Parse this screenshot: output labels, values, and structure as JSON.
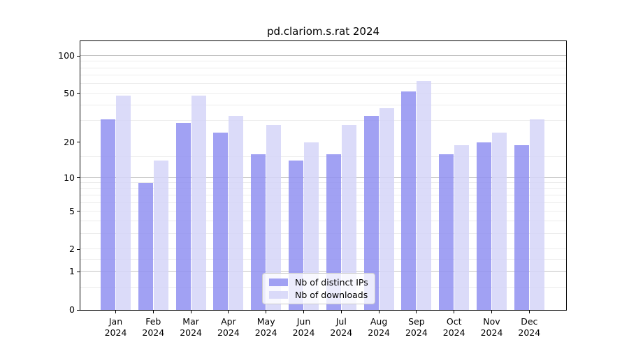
{
  "figure": {
    "title": "pd.clariom.s.rat 2024"
  },
  "chart_data": {
    "type": "bar",
    "title": "pd.clariom.s.rat 2024",
    "categories": [
      "Jan 2024",
      "Feb 2024",
      "Mar 2024",
      "Apr 2024",
      "May 2024",
      "Jun 2024",
      "Jul 2024",
      "Aug 2024",
      "Sep 2024",
      "Oct 2024",
      "Nov 2024",
      "Dec 2024"
    ],
    "series": [
      {
        "name": "Nb of distinct IPs",
        "color": "#9090f1",
        "values": [
          31,
          9,
          29,
          24,
          16,
          14,
          16,
          33,
          52,
          16,
          20,
          19
        ]
      },
      {
        "name": "Nb of downloads",
        "color": "#d5d5f8",
        "values": [
          48,
          14,
          48,
          33,
          28,
          20,
          28,
          38,
          63,
          19,
          24,
          31
        ]
      }
    ],
    "y_axis": {
      "scale": "log(value+1)",
      "tick_values": [
        0,
        1,
        2,
        5,
        10,
        20,
        50,
        100
      ],
      "top_value": 131
    },
    "x_axis": {
      "tick_label_lines": 2
    },
    "grid": {
      "decade_lines": [
        1,
        10,
        100
      ],
      "minor_lines": [
        0.5,
        1.5,
        2,
        3,
        4,
        5,
        6,
        7,
        8,
        9,
        15,
        30,
        40,
        50,
        60,
        70,
        80,
        90
      ]
    },
    "legend": {
      "position": "inside-bottom-center"
    }
  },
  "colors": {
    "background": "#ffffff",
    "axis": "#000000",
    "text": "#000000",
    "grid_decade": "#c3c3c3",
    "grid_minor": "#ececec",
    "legend_border": "#cccccc",
    "legend_bg": "#ffffff"
  }
}
